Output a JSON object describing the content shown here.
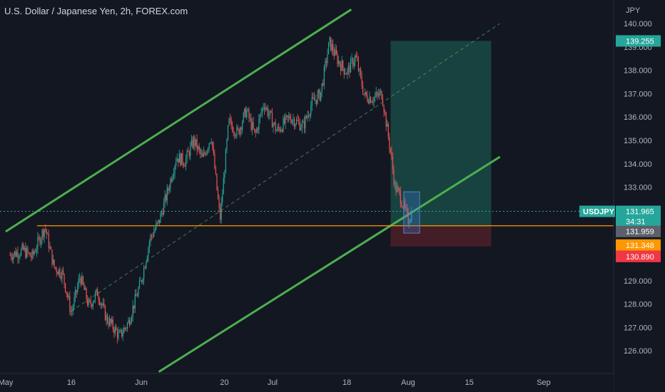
{
  "header": {
    "title": "U.S. Dollar / Japanese Yen, 2h, FOREX.com"
  },
  "chart_data": {
    "type": "candlestick",
    "title": "U.S. Dollar / Japanese Yen, 2h, FOREX.com",
    "symbol": "USDJPY",
    "currency_label": "JPY",
    "ylim": [
      125.3,
      140.5
    ],
    "y_ticks": [
      "140.000",
      "139.000",
      "138.000",
      "137.000",
      "136.000",
      "135.000",
      "134.000",
      "133.000",
      "132.000",
      "131.000",
      "130.000",
      "129.000",
      "128.000",
      "127.000",
      "126.000"
    ],
    "x_ticks": [
      "May",
      "16",
      "Jun",
      "20",
      "Jul",
      "18",
      "Aug",
      "15",
      "Sep"
    ],
    "grid": false,
    "price_path": [
      [
        "May 2",
        130.1
      ],
      [
        "May 5",
        130.3
      ],
      [
        "May 7",
        130.0
      ],
      [
        "May 9",
        130.9
      ],
      [
        "May 10",
        131.3
      ],
      [
        "May 12",
        129.6
      ],
      [
        "May 14",
        129.3
      ],
      [
        "May 16",
        127.6
      ],
      [
        "May 18",
        129.2
      ],
      [
        "May 20",
        127.9
      ],
      [
        "May 22",
        128.5
      ],
      [
        "May 24",
        127.4
      ],
      [
        "May 26",
        126.9
      ],
      [
        "May 27",
        126.6
      ],
      [
        "May 29",
        127.2
      ],
      [
        "Jun 1",
        129.0
      ],
      [
        "Jun 3",
        130.8
      ],
      [
        "Jun 5",
        131.5
      ],
      [
        "Jun 7",
        132.8
      ],
      [
        "Jun 9",
        134.3
      ],
      [
        "Jun 11",
        134.1
      ],
      [
        "Jun 13",
        135.0
      ],
      [
        "Jun 15",
        134.2
      ],
      [
        "Jun 17",
        135.2
      ],
      [
        "Jun 19",
        131.6
      ],
      [
        "Jun 21",
        135.8
      ],
      [
        "Jun 23",
        135.3
      ],
      [
        "Jun 25",
        136.3
      ],
      [
        "Jun 27",
        135.2
      ],
      [
        "Jun 29",
        136.6
      ],
      [
        "Jul 2",
        135.4
      ],
      [
        "Jul 5",
        136.0
      ],
      [
        "Jul 8",
        135.6
      ],
      [
        "Jul 10",
        136.6
      ],
      [
        "Jul 12",
        137.0
      ],
      [
        "Jul 14",
        139.2
      ],
      [
        "Jul 16",
        138.4
      ],
      [
        "Jul 18",
        137.9
      ],
      [
        "Jul 20",
        138.6
      ],
      [
        "Jul 22",
        136.9
      ],
      [
        "Jul 24",
        136.8
      ],
      [
        "Jul 26",
        137.0
      ],
      [
        "Jul 28",
        134.5
      ],
      [
        "Jul 29",
        133.0
      ],
      [
        "Jul 30",
        132.7
      ],
      [
        "Aug 1",
        131.6
      ],
      [
        "Aug 2",
        131.965
      ]
    ],
    "channel_lines": [
      {
        "from": [
          "May 1",
          131.1
        ],
        "to": [
          "Jul 19",
          140.6
        ]
      },
      {
        "from": [
          "Jun 5",
          125.1
        ],
        "to": [
          "Aug 22",
          134.3
        ]
      },
      {
        "from": [
          "May 16",
          127.7
        ],
        "to": [
          "Aug 22",
          140.0
        ]
      }
    ],
    "horizontal_level": 131.348,
    "current_price_line": 131.965,
    "long_position": {
      "entry": 131.348,
      "target": 139.255,
      "stop": 130.89,
      "from": "Jul 28",
      "to": "Aug 20"
    },
    "highlight_box": {
      "from": "Jul 31",
      "to": "Aug 2",
      "top": 132.8,
      "bottom": 131.4
    },
    "price_labels": [
      {
        "text": "139.255",
        "bg": "#26a69a",
        "value": 139.255
      },
      {
        "text": "131.965",
        "bg": "#26a69a",
        "value": 131.965
      },
      {
        "text": "34:31",
        "bg": "#26a69a",
        "value": null
      },
      {
        "text": "131.959",
        "bg": "#5d606b",
        "value": 131.959
      },
      {
        "text": "131.348",
        "bg": "#ff9800",
        "value": 131.348
      },
      {
        "text": "130.890",
        "bg": "#f23645",
        "value": 130.89
      }
    ],
    "symbol_tag": "USDJPY"
  },
  "colors": {
    "background": "#131722",
    "axis_text": "#b2b5be",
    "up": "#26a69a",
    "down": "#ef5350",
    "channel": "#4caf50",
    "level": "#ff9800",
    "profit_zone": "#1a4a45",
    "loss_zone": "#4a1f28"
  }
}
